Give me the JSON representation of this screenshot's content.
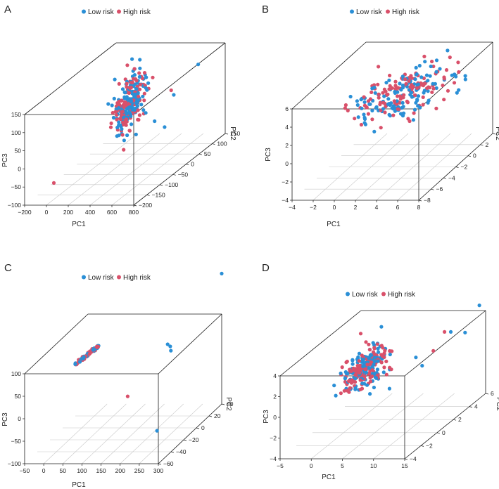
{
  "colors": {
    "low": "#2a8fd6",
    "high": "#d9506a",
    "frame": "#1a1a1a",
    "grid": "#c8c8c8"
  },
  "legend": {
    "low": "Low risk",
    "high": "High risk"
  },
  "chart_data": [
    {
      "panel": "A",
      "type": "scatter3d",
      "series": [
        {
          "name": "Low risk"
        },
        {
          "name": "High risk"
        }
      ],
      "x": {
        "label": "PC1",
        "range": [
          -200,
          800
        ],
        "ticks": [
          "−200",
          "0",
          "200",
          "400",
          "600",
          "800"
        ]
      },
      "y": {
        "label": "PC2",
        "range": [
          -200,
          150
        ],
        "ticks": [
          "−200",
          "−150",
          "−100",
          "−50",
          "0",
          "50",
          "100",
          "150"
        ]
      },
      "z": {
        "label": "PC3",
        "range": [
          -100,
          150
        ],
        "ticks": [
          "−100",
          "−50",
          "0",
          "50",
          "100",
          "150"
        ]
      },
      "cluster": {
        "pc1": 350,
        "pc3": 80,
        "pc3_spread": 45
      },
      "outliers": [
        {
          "series": "Low risk",
          "pc1": 720,
          "pc2": 80,
          "pc3": 130
        },
        {
          "series": "Low risk",
          "pc1": 640,
          "pc2": 20,
          "pc3": 80
        },
        {
          "series": "Low risk",
          "pc1": 700,
          "pc2": -40,
          "pc3": 25
        },
        {
          "series": "Low risk",
          "pc1": 560,
          "pc2": -20,
          "pc3": 30
        },
        {
          "series": "High risk",
          "pc1": 520,
          "pc2": 60,
          "pc3": 70
        },
        {
          "series": "High risk",
          "pc1": 20,
          "pc2": -180,
          "pc3": -50
        }
      ]
    },
    {
      "panel": "B",
      "type": "scatter3d",
      "series": [
        {
          "name": "Low risk"
        },
        {
          "name": "High risk"
        }
      ],
      "x": {
        "label": "PC1",
        "range": [
          -4,
          8
        ],
        "ticks": [
          "−4",
          "−2",
          "0",
          "2",
          "4",
          "6",
          "8"
        ]
      },
      "y": {
        "label": "PC2",
        "range": [
          -8,
          4
        ],
        "ticks": [
          "−8",
          "−6",
          "−4",
          "−2",
          "0",
          "2",
          "4"
        ]
      },
      "z": {
        "label": "PC3",
        "range": [
          -4,
          6
        ],
        "ticks": [
          "−4",
          "−2",
          "0",
          "2",
          "4",
          "6"
        ]
      },
      "cluster": {
        "pc1": 3,
        "pc3": 4,
        "pc3_spread": 1.2
      }
    },
    {
      "panel": "C",
      "type": "scatter3d",
      "series": [
        {
          "name": "Low risk"
        },
        {
          "name": "High risk"
        }
      ],
      "x": {
        "label": "PC1",
        "range": [
          -50,
          300
        ],
        "ticks": [
          "−50",
          "0",
          "50",
          "100",
          "150",
          "200",
          "250",
          "300"
        ]
      },
      "y": {
        "label": "PC2",
        "range": [
          -60,
          40
        ],
        "ticks": [
          "−60",
          "−40",
          "−20",
          "0",
          "20",
          "40"
        ]
      },
      "z": {
        "label": "PC3",
        "range": [
          -100,
          100
        ],
        "ticks": [
          "−100",
          "−50",
          "0",
          "50",
          "100"
        ]
      },
      "cluster": {
        "pc1": 30,
        "pc3": 75,
        "pc3_spread": 8
      },
      "outliers": [
        {
          "series": "Low risk",
          "pc1": 300,
          "pc2": 40,
          "pc3": 190
        },
        {
          "series": "Low risk",
          "pc1": 215,
          "pc2": 10,
          "pc3": 68
        },
        {
          "series": "Low risk",
          "pc1": 205,
          "pc2": 12,
          "pc3": 70
        },
        {
          "series": "Low risk",
          "pc1": 225,
          "pc2": 5,
          "pc3": 65
        },
        {
          "series": "High risk",
          "pc1": 170,
          "pc2": -30,
          "pc3": 10
        },
        {
          "series": "Low risk",
          "pc1": 280,
          "pc2": -50,
          "pc3": -40
        }
      ]
    },
    {
      "panel": "D",
      "type": "scatter3d",
      "series": [
        {
          "name": "Low risk"
        },
        {
          "name": "High risk"
        }
      ],
      "x": {
        "label": "PC1",
        "range": [
          -5,
          15
        ],
        "ticks": [
          "−5",
          "0",
          "5",
          "10",
          "15"
        ]
      },
      "y": {
        "label": "PC2",
        "range": [
          -4,
          6
        ],
        "ticks": [
          "−4",
          "−2",
          "0",
          "2",
          "4",
          "6"
        ]
      },
      "z": {
        "label": "PC3",
        "range": [
          -4,
          4
        ],
        "ticks": [
          "−4",
          "−2",
          "0",
          "2",
          "4"
        ]
      },
      "cluster": {
        "pc1": 2,
        "pc3": 1.5,
        "pc3_spread": 1.6
      },
      "outliers": [
        {
          "series": "Low risk",
          "pc1": 14,
          "pc2": 6,
          "pc3": 4.5
        },
        {
          "series": "Low risk",
          "pc1": 12,
          "pc2": 4,
          "pc3": 3.2
        },
        {
          "series": "High risk",
          "pc1": 11,
          "pc2": 4,
          "pc3": 3.2
        },
        {
          "series": "Low risk",
          "pc1": 9,
          "pc2": 2,
          "pc3": 2
        },
        {
          "series": "Low risk",
          "pc1": 10,
          "pc2": 2,
          "pc3": 1.2
        },
        {
          "series": "High risk",
          "pc1": 10.5,
          "pc2": 3,
          "pc3": 2
        },
        {
          "series": "Low risk",
          "pc1": 13,
          "pc2": 5,
          "pc3": 2.5
        }
      ]
    }
  ]
}
